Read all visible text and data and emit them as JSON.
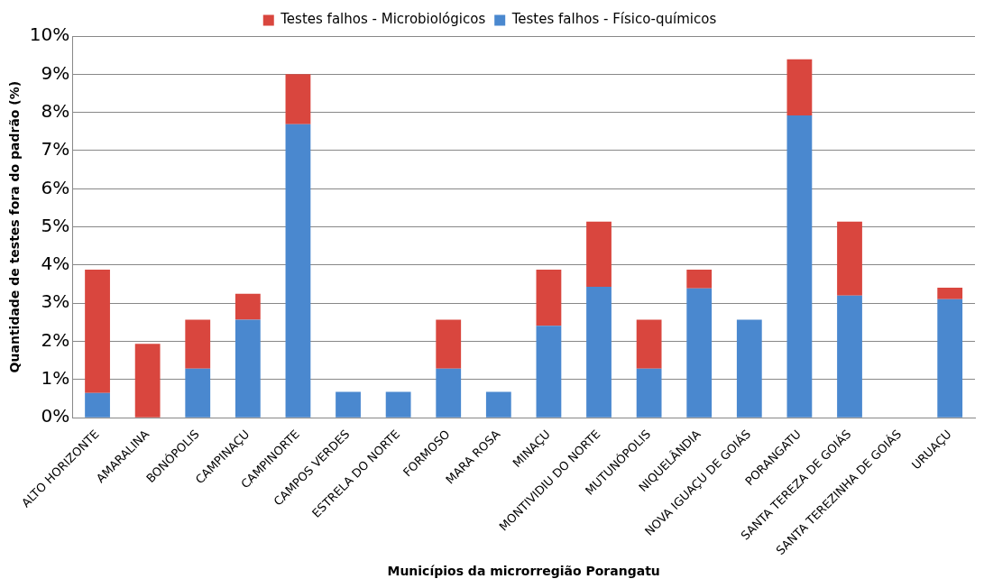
{
  "chart_data": {
    "type": "bar",
    "stacked": true,
    "xlabel": "Municípios da microrregião Porangatu",
    "ylabel": "Quantidade de testes fora do padrão (%)",
    "categories": [
      "ALTO HORIZONTE",
      "AMARALINA",
      "BONÓPOLIS",
      "CAMPINAÇU",
      "CAMPINORTE",
      "CAMPOS VERDES",
      "ESTRELA DO NORTE",
      "FORMOSO",
      "MARA ROSA",
      "MINAÇU",
      "MONTIVIDIU DO NORTE",
      "MUTUNÓPOLIS",
      "NIQUELÂNDIA",
      "NOVA IGUAÇU DE GOIÁS",
      "PORANGATU",
      "SANTA TEREZA DE GOIÁS",
      "SANTA TEREZINHA DE GOIÁS",
      "URUAÇU"
    ],
    "series": [
      {
        "name": "Testes falhos - Físico-químicos",
        "color": "#4a88cf",
        "values": [
          0.65,
          0,
          1.29,
          2.57,
          7.69,
          0.68,
          0.68,
          1.29,
          0.68,
          2.41,
          3.43,
          1.29,
          3.39,
          2.57,
          7.92,
          3.2,
          0,
          3.11
        ]
      },
      {
        "name": "Testes falhos - Microbiológicos",
        "color": "#d9463e",
        "values": [
          3.23,
          1.94,
          1.28,
          0.68,
          1.31,
          0,
          0,
          1.28,
          0,
          1.47,
          1.71,
          1.28,
          0.49,
          0,
          1.47,
          1.94,
          0,
          0.3
        ]
      }
    ],
    "ylim": [
      0,
      10
    ],
    "yticks": [
      {
        "value": 0,
        "label": "0%"
      },
      {
        "value": 1,
        "label": "1%"
      },
      {
        "value": 2,
        "label": "2%"
      },
      {
        "value": 3,
        "label": "3%"
      },
      {
        "value": 4,
        "label": "4%"
      },
      {
        "value": 5,
        "label": "5%"
      },
      {
        "value": 6,
        "label": "6%"
      },
      {
        "value": 7,
        "label": "7%"
      },
      {
        "value": 8,
        "label": "8%"
      },
      {
        "value": 9,
        "label": "9%"
      },
      {
        "value": 10,
        "label": "10%"
      }
    ],
    "grid": "y",
    "legend": "top"
  }
}
